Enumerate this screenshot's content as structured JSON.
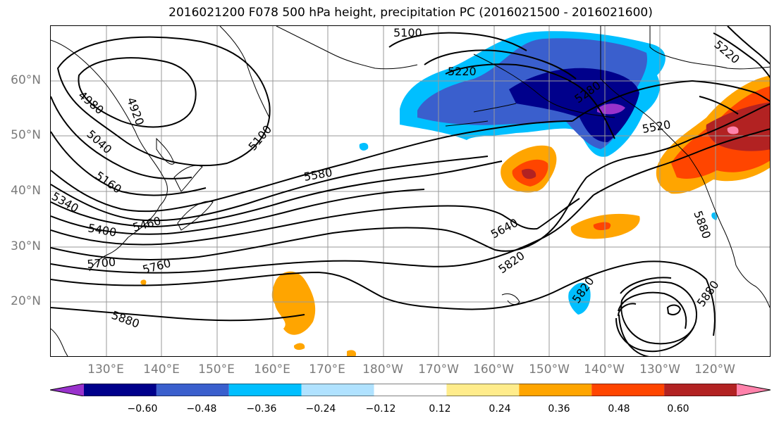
{
  "title": "2016021200 F078 500 hPa height, precipitation PC (2016021500 - 2016021600)",
  "lat_labels": [
    "60°N",
    "50°N",
    "40°N",
    "30°N",
    "20°N"
  ],
  "lon_labels": [
    "130°E",
    "140°E",
    "150°E",
    "160°E",
    "170°E",
    "180°W",
    "170°W",
    "160°W",
    "150°W",
    "140°W",
    "130°W",
    "120°W"
  ],
  "colorbar": {
    "tick_labels": [
      "−0.60",
      "−0.48",
      "−0.36",
      "−0.24",
      "−0.12",
      "0.12",
      "0.24",
      "0.36",
      "0.48",
      "0.60"
    ],
    "colors": [
      "#9932CC",
      "#00008B",
      "#3a5fcd",
      "#00BFFF",
      "#B0E2FF",
      "#FFFFFF",
      "#FFEC8B",
      "#FFA500",
      "#FF4500",
      "#B22222",
      "#FF82AB"
    ]
  },
  "contour_labels": [
    {
      "id": "c5100a",
      "text": "5100"
    },
    {
      "id": "c5220a",
      "text": "5220"
    },
    {
      "id": "c5220b",
      "text": "5220"
    },
    {
      "id": "c4980",
      "text": "4980"
    },
    {
      "id": "c4920",
      "text": "4920"
    },
    {
      "id": "c5040",
      "text": "5040"
    },
    {
      "id": "c5100b",
      "text": "5100"
    },
    {
      "id": "c5160",
      "text": "5160"
    },
    {
      "id": "c5340",
      "text": "5340"
    },
    {
      "id": "c5400",
      "text": "5400"
    },
    {
      "id": "c5460",
      "text": "5460"
    },
    {
      "id": "c5280",
      "text": "5280"
    },
    {
      "id": "c5520",
      "text": "5520"
    },
    {
      "id": "c5580",
      "text": "5580"
    },
    {
      "id": "c5640",
      "text": "5640"
    },
    {
      "id": "c5700",
      "text": "5700"
    },
    {
      "id": "c5760",
      "text": "5760"
    },
    {
      "id": "c5820a",
      "text": "5820"
    },
    {
      "id": "c5820b",
      "text": "5820"
    },
    {
      "id": "c5880a",
      "text": "5880"
    },
    {
      "id": "c5880b",
      "text": "5880"
    },
    {
      "id": "c5880c",
      "text": "5880"
    }
  ]
}
